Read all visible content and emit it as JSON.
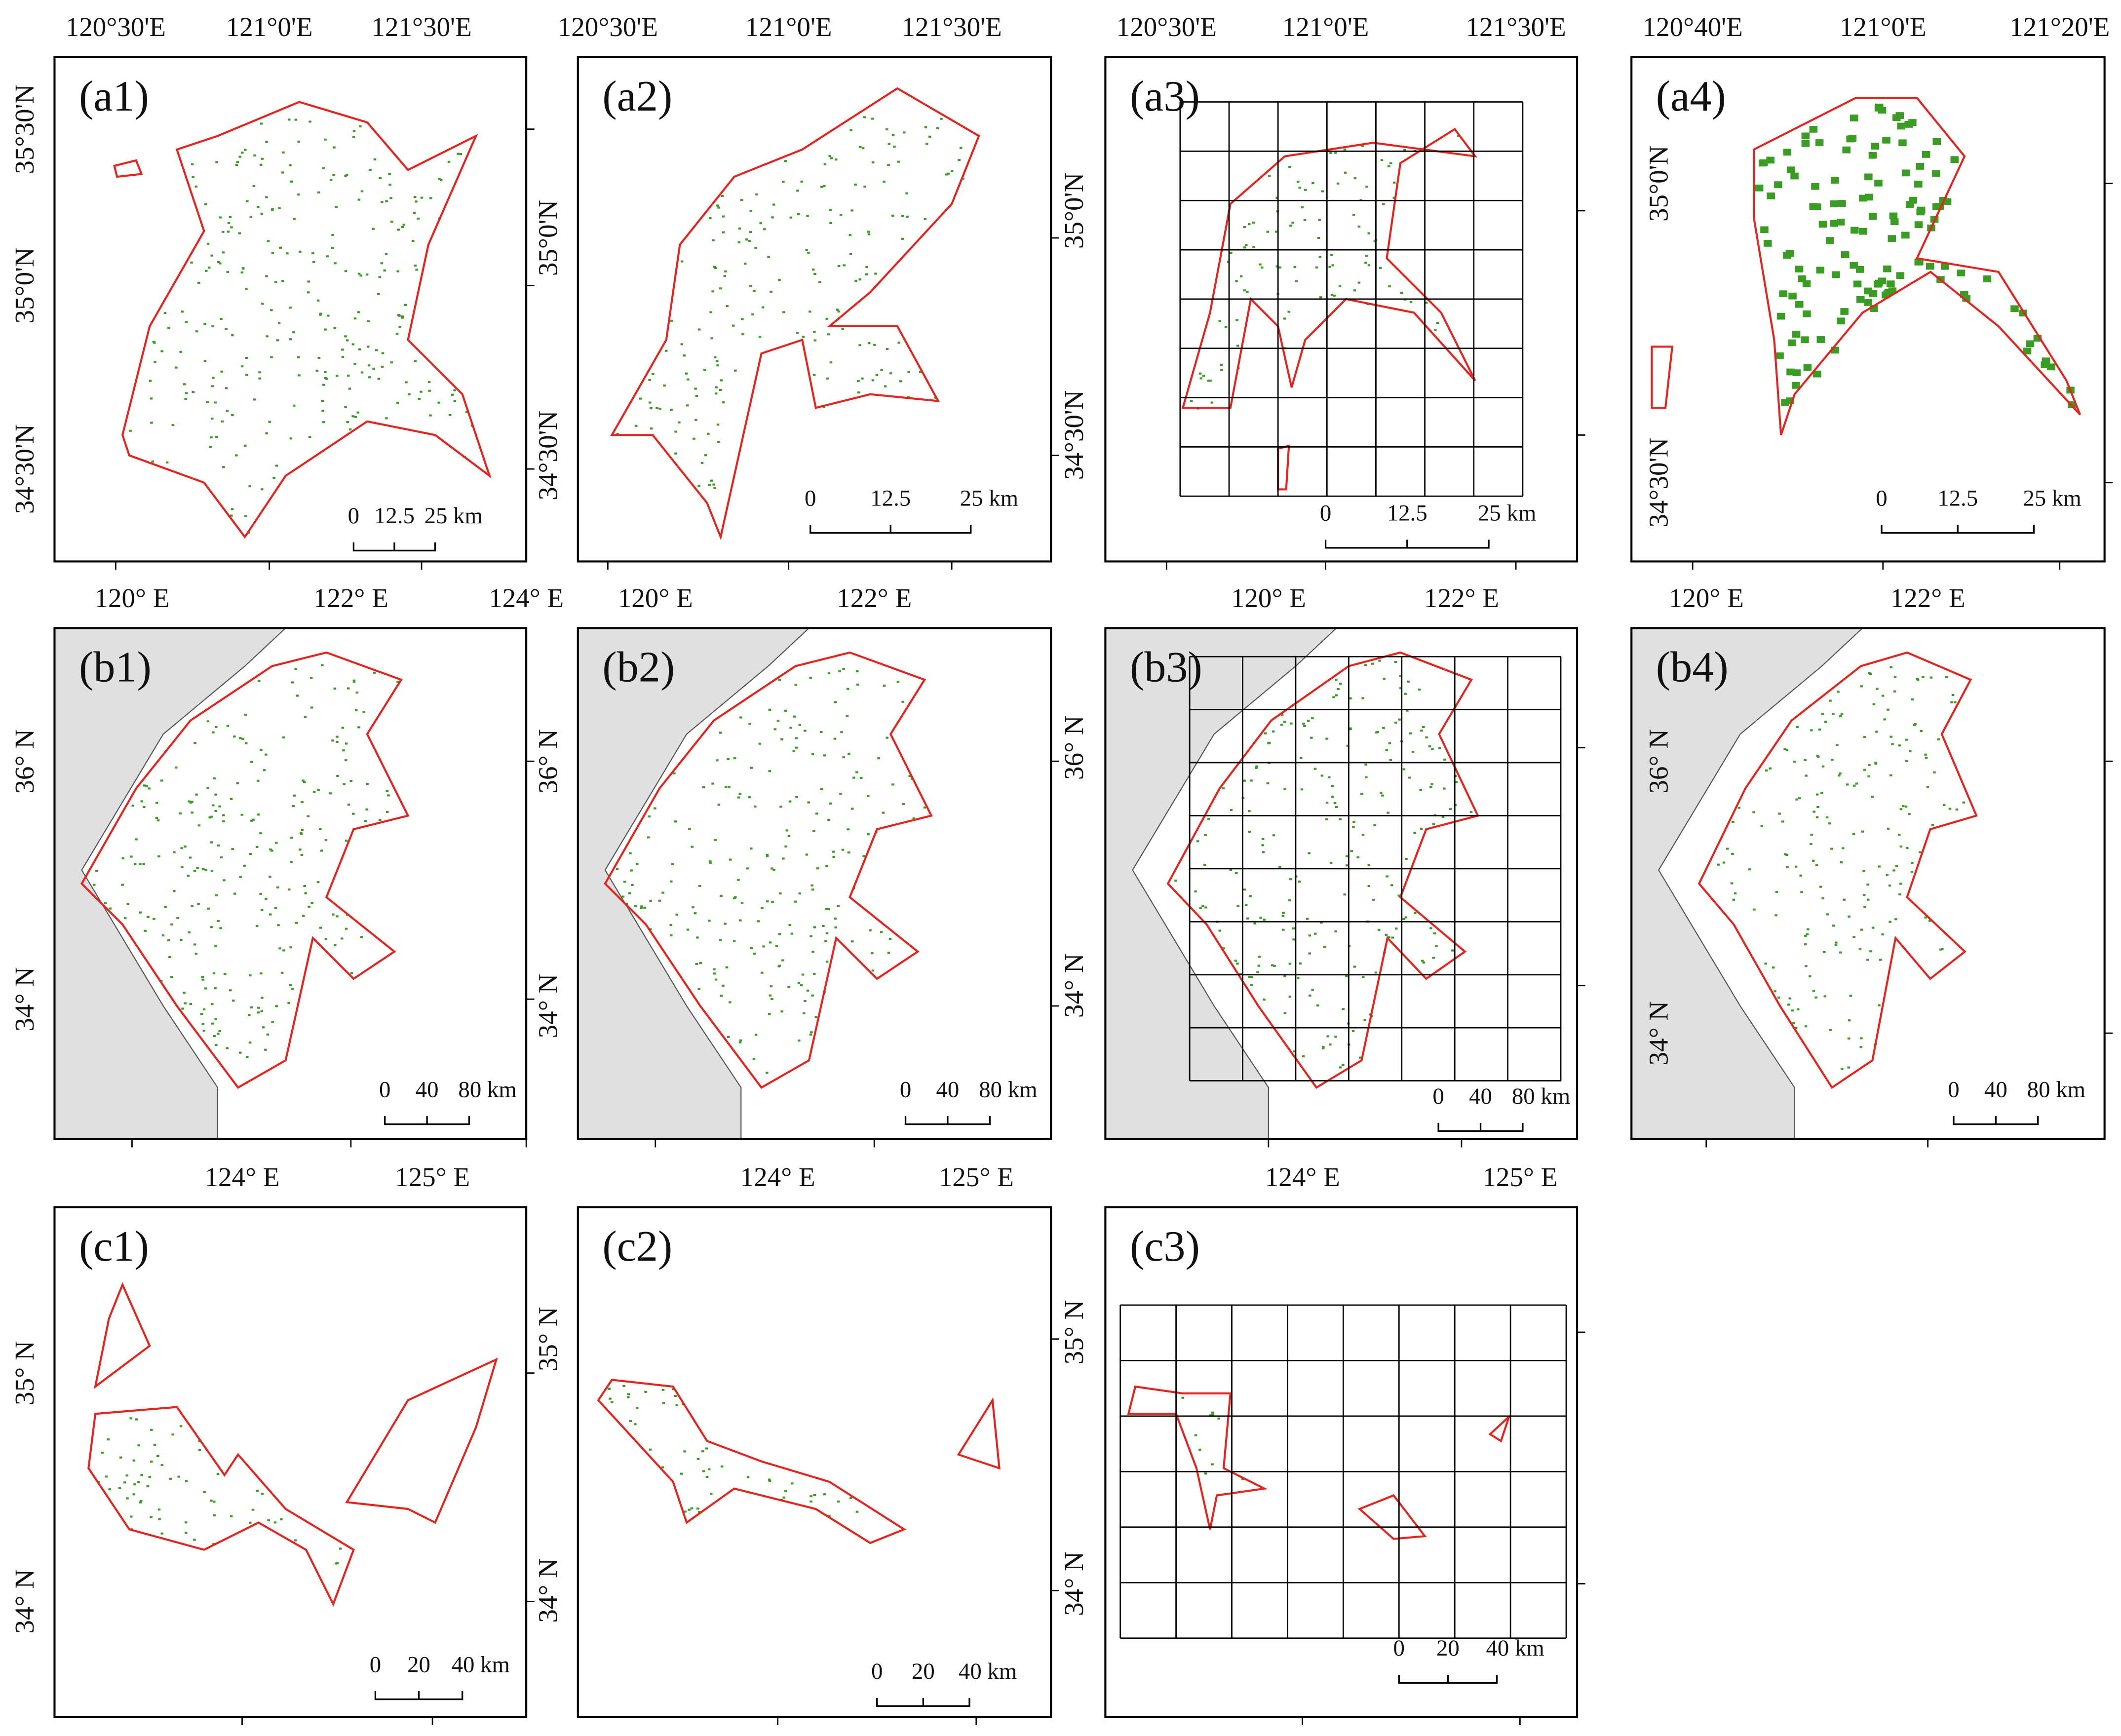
{
  "panels": [
    {
      "label": "(a1)",
      "top_ticks": [
        "120°30'E",
        "121°0'E",
        "121°30'E"
      ],
      "side_ticks": [
        "35°30'N",
        "35°0'N",
        "34°30'N"
      ],
      "scale": [
        "0",
        "12.5",
        "25 km"
      ]
    },
    {
      "label": "(a2)",
      "top_ticks": [
        "120°30'E",
        "121°0'E",
        "121°30'E"
      ],
      "side_ticks": [
        "35°0'N",
        "34°30'N"
      ],
      "scale": [
        "0",
        "12.5",
        "25 km"
      ]
    },
    {
      "label": "(a3)",
      "top_ticks": [
        "120°30'E",
        "121°0'E",
        "121°30'E"
      ],
      "side_ticks": [
        "35°0'N",
        "34°30'N"
      ],
      "scale": [
        "0",
        "12.5",
        "25 km"
      ]
    },
    {
      "label": "(a4)",
      "top_ticks": [
        "120°40'E",
        "121°0'E",
        "121°20'E"
      ],
      "side_ticks": [
        "35°0'N",
        "34°30'N"
      ],
      "scale": [
        "0",
        "12.5",
        "25 km"
      ]
    },
    {
      "label": "(b1)",
      "top_ticks": [
        "120° E",
        "122° E",
        "124° E"
      ],
      "side_ticks": [
        "36° N",
        "34° N"
      ],
      "scale": [
        "0",
        "40",
        "80 km"
      ]
    },
    {
      "label": "(b2)",
      "top_ticks": [
        "120° E",
        "122° E"
      ],
      "side_ticks": [
        "36° N",
        "34° N"
      ],
      "scale": [
        "0",
        "40",
        "80 km"
      ]
    },
    {
      "label": "(b3)",
      "top_ticks": [
        "120° E",
        "122° E"
      ],
      "side_ticks": [
        "36° N",
        "34° N"
      ],
      "scale": [
        "0",
        "40",
        "80 km"
      ]
    },
    {
      "label": "(b4)",
      "top_ticks": [
        "120° E",
        "122° E"
      ],
      "side_ticks": [
        "36° N",
        "34° N"
      ],
      "scale": [
        "0",
        "40",
        "80 km"
      ]
    },
    {
      "label": "(c1)",
      "top_ticks": [
        "124° E",
        "125° E"
      ],
      "side_ticks": [
        "35° N",
        "34° N"
      ],
      "scale": [
        "0",
        "20",
        "40 km"
      ]
    },
    {
      "label": "(c2)",
      "top_ticks": [
        "124° E",
        "125° E"
      ],
      "side_ticks": [
        "35° N",
        "34° N"
      ],
      "scale": [
        "0",
        "20",
        "40 km"
      ]
    },
    {
      "label": "(c3)",
      "top_ticks": [
        "124° E",
        "125° E"
      ],
      "side_ticks": [
        "35° N",
        "34° N"
      ],
      "scale": [
        "0",
        "20",
        "40 km"
      ]
    }
  ]
}
